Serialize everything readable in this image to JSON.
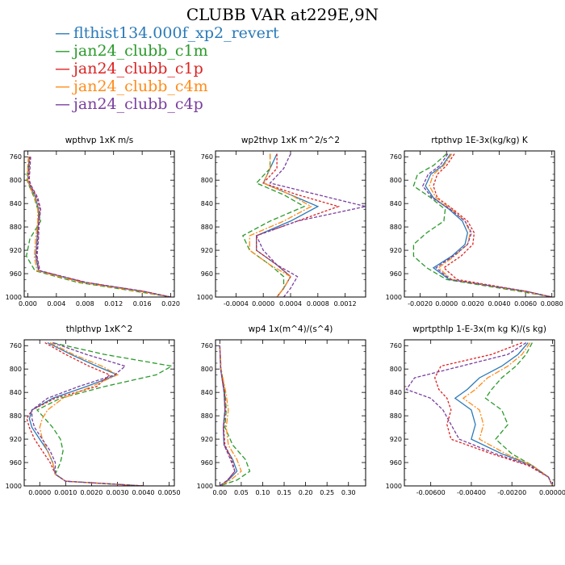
{
  "title": "CLUBB VAR at229E,9N",
  "legend": [
    {
      "label": "flthist134.000f_xp2_revert",
      "color": "#2a7ab8"
    },
    {
      "label": "jan24_clubb_c1m",
      "color": "#2a9a2a"
    },
    {
      "label": "jan24_clubb_c1p",
      "color": "#dd2222"
    },
    {
      "label": "jan24_clubb_c4m",
      "color": "#ff8c1a"
    },
    {
      "label": "jan24_clubb_c4p",
      "color": "#7a3fa0"
    }
  ],
  "chart_data": [
    {
      "type": "line",
      "title": "wpthvp  1xK m/s",
      "ylim": [
        1000,
        750
      ],
      "yticks": [
        760,
        800,
        840,
        880,
        920,
        960,
        1000
      ],
      "xlim": [
        -0.0005,
        0.0205
      ],
      "xticks": [
        0.0,
        0.004,
        0.008,
        0.012,
        0.016,
        0.02
      ],
      "xticklabels": [
        "0.000",
        "0.004",
        "0.008",
        "0.012",
        "0.016",
        "0.020"
      ],
      "y": [
        760,
        780,
        800,
        810,
        830,
        850,
        870,
        900,
        930,
        955,
        975,
        990,
        1000
      ],
      "series": [
        {
          "values": [
            0.0002,
            0.0001,
            0.0,
            0.0003,
            0.0011,
            0.0015,
            0.0015,
            0.0013,
            0.0011,
            0.0015,
            0.008,
            0.016,
            0.02
          ]
        },
        {
          "values": [
            0.0001,
            0.0,
            -0.0001,
            0.0002,
            0.0009,
            0.0014,
            0.0018,
            0.0003,
            -0.0002,
            0.001,
            0.007,
            0.015,
            0.02
          ]
        },
        {
          "values": [
            0.0003,
            0.0002,
            0.0001,
            0.0004,
            0.0013,
            0.0017,
            0.0015,
            0.0014,
            0.0012,
            0.0016,
            0.008,
            0.016,
            0.02
          ]
        },
        {
          "values": [
            0.0001,
            0.0,
            0.0,
            0.0002,
            0.001,
            0.0014,
            0.0014,
            0.0011,
            0.0009,
            0.0013,
            0.0075,
            0.0155,
            0.02
          ]
        },
        {
          "values": [
            0.0004,
            0.0003,
            0.0002,
            0.0005,
            0.0014,
            0.0018,
            0.0016,
            0.0015,
            0.0013,
            0.0017,
            0.0082,
            0.0162,
            0.02
          ]
        }
      ]
    },
    {
      "type": "line",
      "title": "wp2thvp  1xK m^2/s^2",
      "ylim": [
        1000,
        750
      ],
      "yticks": [
        760,
        800,
        840,
        880,
        920,
        960,
        1000
      ],
      "xlim": [
        -0.0007,
        0.0015
      ],
      "xticks": [
        -0.0004,
        0.0,
        0.0004,
        0.0008,
        0.0012
      ],
      "xticklabels": [
        "-0.0004",
        "0.0000",
        "0.0004",
        "0.0008",
        "0.0012"
      ],
      "y": [
        755,
        780,
        805,
        825,
        845,
        870,
        895,
        920,
        945,
        965,
        985,
        1000
      ],
      "series": [
        {
          "values": [
            0.0002,
            0.0001,
            0.0,
            0.0004,
            0.0008,
            0.0004,
            -0.0001,
            -0.0001,
            0.0002,
            0.0004,
            0.0003,
            0.0002
          ]
        },
        {
          "values": [
            0.0001,
            0.0001,
            -0.0001,
            0.0003,
            0.0006,
            0.0001,
            -0.0003,
            -0.0002,
            0.0001,
            0.0003,
            0.0003,
            0.0002
          ]
        },
        {
          "values": [
            0.0002,
            0.0002,
            0.0,
            0.0005,
            0.0011,
            0.0005,
            -0.0001,
            -0.0001,
            0.0002,
            0.0004,
            0.0003,
            0.0002
          ]
        },
        {
          "values": [
            0.0001,
            0.0001,
            0.0,
            0.0004,
            0.0007,
            0.0003,
            -0.0002,
            -0.0002,
            0.0001,
            0.0004,
            0.0003,
            0.0002
          ]
        },
        {
          "values": [
            0.0004,
            0.0003,
            0.0001,
            0.0008,
            0.0015,
            0.0005,
            -0.0001,
            0.0,
            0.0002,
            0.0005,
            0.0004,
            0.0003
          ]
        }
      ]
    },
    {
      "type": "line",
      "title": "rtpthvp  1E-3x(kg/kg) K",
      "ylim": [
        1000,
        750
      ],
      "yticks": [
        760,
        800,
        840,
        880,
        920,
        960,
        1000
      ],
      "xlim": [
        -0.0032,
        0.0082
      ],
      "xticks": [
        -0.002,
        0.0,
        0.002,
        0.004,
        0.006,
        0.008
      ],
      "xticklabels": [
        "-0.0020",
        "0.0000",
        "0.0020",
        "0.0040",
        "0.0060",
        "0.0080"
      ],
      "y": [
        755,
        775,
        790,
        810,
        830,
        850,
        870,
        890,
        910,
        930,
        950,
        970,
        990,
        1000
      ],
      "series": [
        {
          "values": [
            0.0003,
            -0.0003,
            -0.0012,
            -0.0016,
            -0.001,
            0.0002,
            0.0012,
            0.0016,
            0.0014,
            0.0004,
            -0.001,
            0.0002,
            0.006,
            0.008
          ]
        },
        {
          "values": [
            0.0,
            -0.001,
            -0.0022,
            -0.0025,
            -0.0012,
            -0.0001,
            -0.0002,
            -0.0015,
            -0.0025,
            -0.0025,
            -0.0015,
            0.0,
            0.0055,
            0.008
          ]
        },
        {
          "values": [
            0.0006,
            0.0,
            -0.0007,
            -0.001,
            -0.0007,
            0.0005,
            0.0016,
            0.0021,
            0.002,
            0.0011,
            -0.0002,
            0.0008,
            0.006,
            0.008
          ]
        },
        {
          "values": [
            0.0004,
            -0.0002,
            -0.001,
            -0.0013,
            -0.0008,
            0.0004,
            0.0014,
            0.0018,
            0.0016,
            0.0006,
            -0.0006,
            0.0004,
            0.0058,
            0.008
          ]
        },
        {
          "values": [
            0.0001,
            -0.0005,
            -0.0014,
            -0.0018,
            -0.0011,
            0.0003,
            0.0014,
            0.0019,
            0.0016,
            0.0005,
            -0.0008,
            0.0003,
            0.006,
            0.008
          ]
        }
      ]
    },
    {
      "type": "line",
      "title": "thlpthvp  1xK^2",
      "ylim": [
        1000,
        750
      ],
      "yticks": [
        760,
        800,
        840,
        880,
        920,
        960,
        1000
      ],
      "xlim": [
        -0.0006,
        0.0052
      ],
      "xticks": [
        0.0,
        0.001,
        0.002,
        0.003,
        0.004,
        0.005
      ],
      "xticklabels": [
        "0.0000",
        "0.0010",
        "0.0020",
        "0.0030",
        "0.0040",
        "0.0050"
      ],
      "y": [
        755,
        775,
        795,
        810,
        830,
        850,
        870,
        885,
        900,
        920,
        940,
        960,
        980,
        992,
        1000
      ],
      "series": [
        {
          "values": [
            0.0003,
            0.0012,
            0.0022,
            0.003,
            0.0018,
            0.0005,
            -0.0003,
            -0.0004,
            -0.0003,
            0.0,
            0.0003,
            0.0005,
            0.0006,
            0.001,
            0.004
          ]
        },
        {
          "values": [
            0.0005,
            0.0025,
            0.0051,
            0.0045,
            0.0025,
            0.0008,
            -0.0001,
            0.0002,
            0.0005,
            0.0008,
            0.0009,
            0.0008,
            0.0006,
            0.001,
            0.004
          ]
        },
        {
          "values": [
            0.0002,
            0.001,
            0.0019,
            0.0027,
            0.0022,
            0.0006,
            -0.0003,
            -0.0005,
            -0.0004,
            -0.0002,
            0.0001,
            0.0004,
            0.0006,
            0.001,
            0.004
          ]
        },
        {
          "values": [
            0.0004,
            0.0013,
            0.0024,
            0.003,
            0.002,
            0.0009,
            0.0003,
            0.0001,
            0.0,
            0.0001,
            0.0003,
            0.0005,
            0.0006,
            0.001,
            0.004
          ]
        },
        {
          "values": [
            0.0005,
            0.0018,
            0.0033,
            0.0029,
            0.0015,
            0.0003,
            -0.0003,
            -0.0003,
            -0.0002,
            0.0001,
            0.0004,
            0.0006,
            0.0006,
            0.001,
            0.004
          ]
        }
      ]
    },
    {
      "type": "line",
      "title": "wp4  1x(m^4)/(s^4)",
      "ylim": [
        1000,
        750
      ],
      "yticks": [
        760,
        800,
        840,
        880,
        920,
        960,
        1000
      ],
      "xlim": [
        -0.01,
        0.34
      ],
      "xticks": [
        0.0,
        0.05,
        0.1,
        0.15,
        0.2,
        0.25,
        0.3
      ],
      "xticklabels": [
        "0.00",
        "0.05",
        "0.10",
        "0.15",
        "0.20",
        "0.25",
        "0.30"
      ],
      "y": [
        760,
        800,
        840,
        870,
        900,
        930,
        955,
        975,
        990,
        1000
      ],
      "series": [
        {
          "values": [
            0.0,
            0.002,
            0.01,
            0.012,
            0.008,
            0.01,
            0.03,
            0.04,
            0.02,
            0.0
          ]
        },
        {
          "values": [
            0.0,
            0.003,
            0.012,
            0.015,
            0.012,
            0.03,
            0.06,
            0.07,
            0.04,
            0.0
          ]
        },
        {
          "values": [
            0.0,
            0.002,
            0.011,
            0.013,
            0.009,
            0.012,
            0.028,
            0.035,
            0.018,
            0.0
          ]
        },
        {
          "values": [
            0.0,
            0.003,
            0.014,
            0.02,
            0.015,
            0.02,
            0.04,
            0.05,
            0.025,
            0.0
          ]
        },
        {
          "values": [
            0.0,
            0.002,
            0.01,
            0.012,
            0.008,
            0.01,
            0.025,
            0.035,
            0.018,
            0.0
          ]
        }
      ]
    },
    {
      "type": "line",
      "title": "wprtpthlp  1-E-3x(m kg K)/(s kg)",
      "ylim": [
        1000,
        750
      ],
      "yticks": [
        760,
        800,
        840,
        880,
        920,
        960,
        1000
      ],
      "xlim": [
        -0.0073,
        0.0001
      ],
      "xticks": [
        -0.006,
        -0.004,
        -0.002,
        0.0
      ],
      "xticklabels": [
        "-0.00600",
        "-0.00400",
        "-0.00200",
        "0.00000"
      ],
      "y": [
        755,
        775,
        795,
        815,
        835,
        850,
        870,
        895,
        920,
        945,
        965,
        985,
        1000
      ],
      "series": [
        {
          "values": [
            -0.0012,
            -0.0017,
            -0.0025,
            -0.0036,
            -0.0042,
            -0.0048,
            -0.004,
            -0.0038,
            -0.004,
            -0.0025,
            -0.001,
            -0.0002,
            0.0
          ]
        },
        {
          "values": [
            -0.001,
            -0.0013,
            -0.0018,
            -0.0025,
            -0.003,
            -0.0033,
            -0.0025,
            -0.0022,
            -0.0028,
            -0.002,
            -0.001,
            -0.0002,
            0.0
          ]
        },
        {
          "values": [
            -0.0015,
            -0.003,
            -0.0055,
            -0.0058,
            -0.0056,
            -0.0052,
            -0.005,
            -0.0052,
            -0.005,
            -0.003,
            -0.0012,
            -0.0002,
            0.0
          ]
        },
        {
          "values": [
            -0.0011,
            -0.0015,
            -0.0022,
            -0.0032,
            -0.0038,
            -0.0044,
            -0.0036,
            -0.0034,
            -0.0036,
            -0.0023,
            -0.001,
            -0.0002,
            0.0
          ]
        },
        {
          "values": [
            -0.0013,
            -0.0022,
            -0.0045,
            -0.0068,
            -0.0072,
            -0.006,
            -0.0054,
            -0.005,
            -0.0046,
            -0.0028,
            -0.0011,
            -0.0002,
            0.0
          ]
        }
      ]
    }
  ]
}
